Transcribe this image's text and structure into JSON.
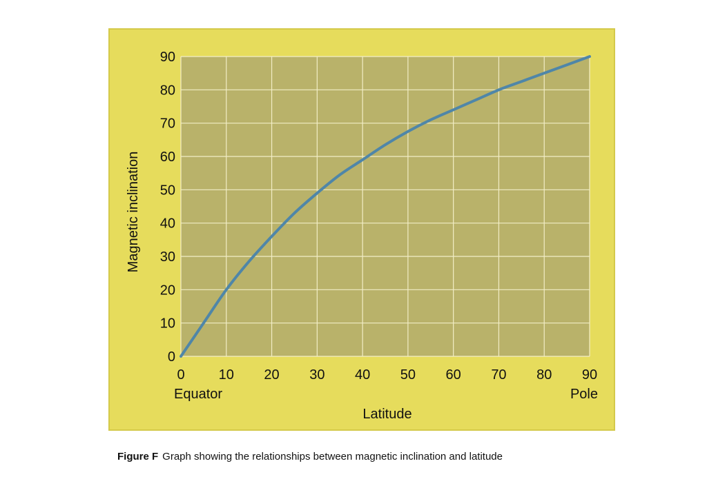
{
  "chart_data": {
    "type": "line",
    "xlabel": "Latitude",
    "ylabel": "Magnetic inclination",
    "xlim": [
      0,
      90
    ],
    "ylim": [
      0,
      90
    ],
    "x_ticks": [
      0,
      10,
      20,
      30,
      40,
      50,
      60,
      70,
      80,
      90
    ],
    "y_ticks": [
      0,
      10,
      20,
      30,
      40,
      50,
      60,
      70,
      80,
      90
    ],
    "x_end_labels": {
      "left": "Equator",
      "right": "Pole"
    },
    "grid": true,
    "series": [
      {
        "x": [
          0,
          5,
          10,
          15,
          20,
          25,
          30,
          35,
          40,
          45,
          50,
          55,
          60,
          65,
          70,
          75,
          80,
          85,
          90
        ],
        "y": [
          0,
          10,
          20,
          28.5,
          36,
          43,
          49,
          54.5,
          59,
          63.5,
          67.5,
          71,
          74,
          77,
          80,
          82.5,
          85,
          87.5,
          90
        ]
      }
    ],
    "colors": {
      "line": "#4f86a8",
      "plot_bg": "#b9b26a",
      "grid": "#f2edc6",
      "panel": "#e6dc5c"
    }
  },
  "caption": {
    "label": "Figure F",
    "text": "Graph showing the relationships between magnetic inclination and latitude"
  }
}
